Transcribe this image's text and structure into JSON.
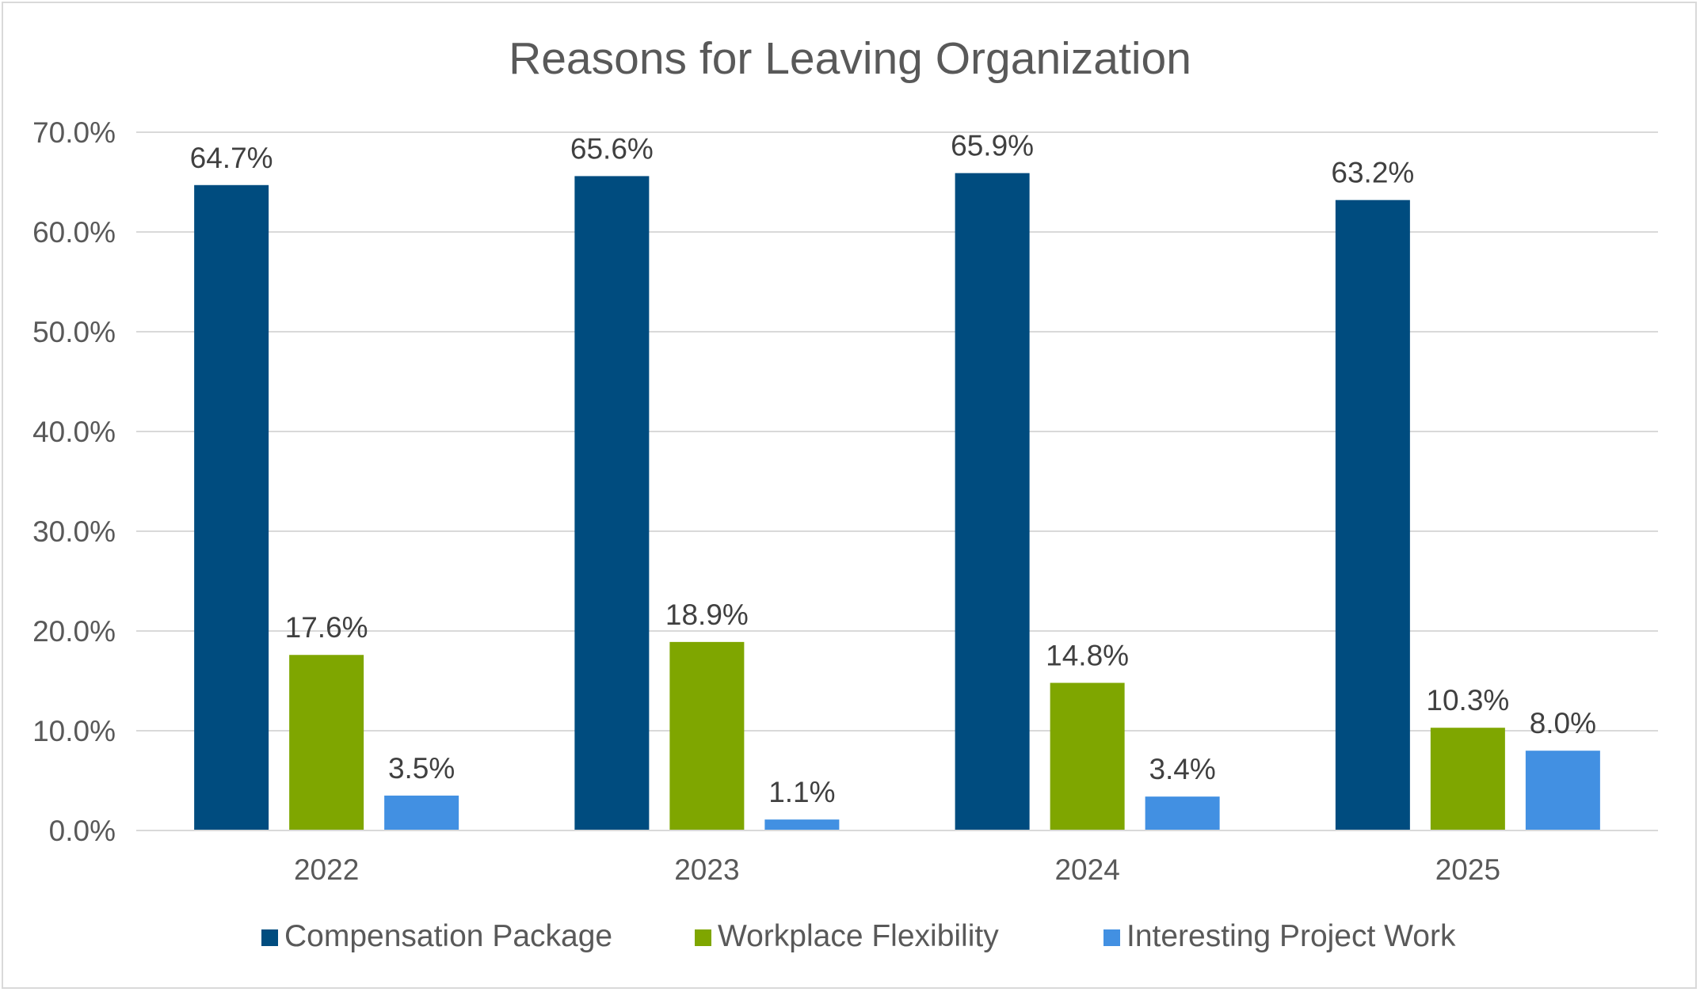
{
  "chart_data": {
    "type": "bar",
    "title": "Reasons for Leaving Organization",
    "categories": [
      "2022",
      "2023",
      "2024",
      "2025"
    ],
    "series": [
      {
        "name": "Compensation Package",
        "color": "#004c7f",
        "values": [
          64.7,
          65.6,
          65.9,
          63.2
        ],
        "labels": [
          "64.7%",
          "65.6%",
          "65.9%",
          "63.2%"
        ]
      },
      {
        "name": "Workplace Flexibility",
        "color": "#7fa600",
        "values": [
          17.6,
          18.9,
          14.8,
          10.3
        ],
        "labels": [
          "17.6%",
          "18.9%",
          "14.8%",
          "10.3%"
        ]
      },
      {
        "name": "Interesting Project Work",
        "color": "#4290e2",
        "values": [
          3.5,
          1.1,
          3.4,
          8.0
        ],
        "labels": [
          "3.5%",
          "1.1%",
          "3.4%",
          "8.0%"
        ]
      }
    ],
    "ylim": [
      0,
      70
    ],
    "yticks": [
      0,
      10,
      20,
      30,
      40,
      50,
      60,
      70
    ],
    "ytick_labels": [
      "0.0%",
      "10.0%",
      "20.0%",
      "30.0%",
      "40.0%",
      "50.0%",
      "60.0%",
      "70.0%"
    ],
    "xlabel": "",
    "ylabel": "",
    "grid": true,
    "legend": "bottom",
    "data_labels": true
  }
}
